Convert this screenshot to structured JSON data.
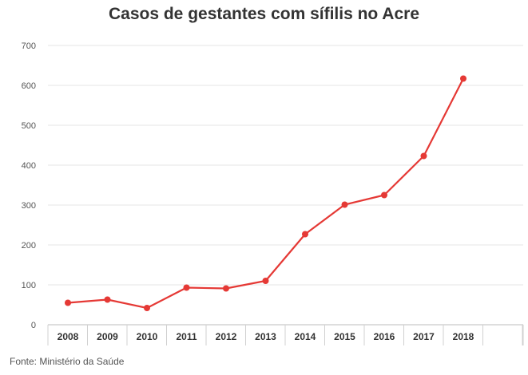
{
  "chart_data": {
    "type": "line",
    "title": "Casos de gestantes com sífilis no Acre",
    "categories": [
      "2008",
      "2009",
      "2010",
      "2011",
      "2012",
      "2013",
      "2014",
      "2015",
      "2016",
      "2017",
      "2018"
    ],
    "series": [
      {
        "values": [
          55,
          63,
          42,
          93,
          91,
          110,
          227,
          301,
          325,
          423,
          617
        ]
      }
    ],
    "yticks": [
      0,
      100,
      200,
      300,
      400,
      500,
      600,
      700
    ],
    "ylim": [
      0,
      700
    ],
    "grid": true,
    "line_color": "#e53935"
  },
  "source": "Fonte: Ministério da Saúde"
}
